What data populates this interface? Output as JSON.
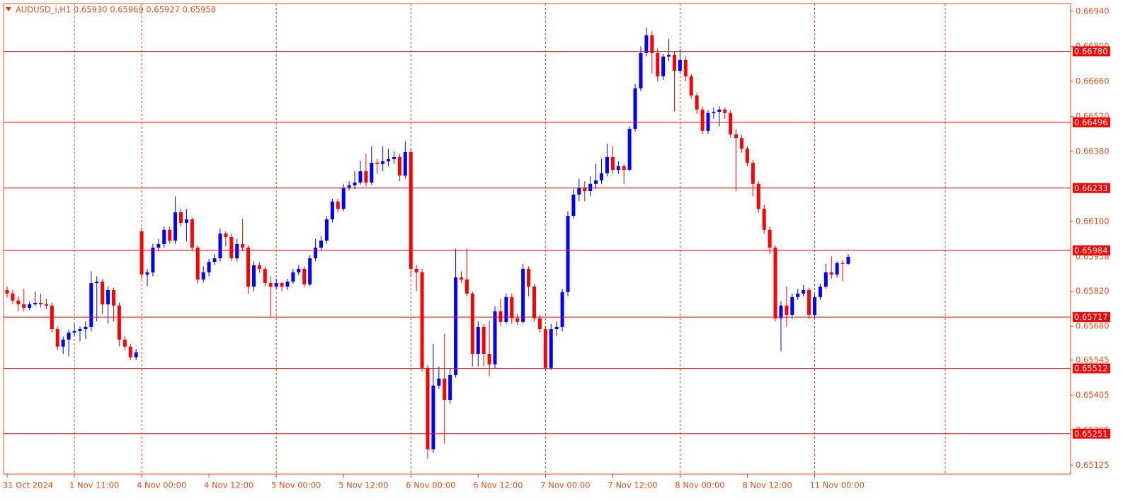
{
  "chart_data": {
    "type": "candlestick",
    "title": "AUDUSD_i,H1",
    "info": "0.65930 0.65969 0.65927 0.65958",
    "up_color": "#0000ff",
    "down_color": "#ff0000",
    "level_color": "#ff0000",
    "grid_color": "#ff3a1a",
    "ylim": [
      0.65089,
      0.66971
    ],
    "yticks": [
      {
        "value": 0.6694,
        "label": "0.66940"
      },
      {
        "value": 0.668,
        "label": "0.66800"
      },
      {
        "value": 0.6666,
        "label": "0.66660"
      },
      {
        "value": 0.6652,
        "label": "0.66520"
      },
      {
        "value": 0.6638,
        "label": "0.66380"
      },
      {
        "value": 0.661,
        "label": "0.66100"
      },
      {
        "value": 0.6582,
        "label": "0.65820"
      },
      {
        "value": 0.6568,
        "label": "0.65680"
      },
      0.65545,
      0.65405,
      0.65265,
      0.65125
    ],
    "levels": [
      {
        "value": 0.6678,
        "label": "0.66780"
      },
      0.66496,
      0.66233,
      0.65984,
      0.65717,
      0.65512,
      0.65251
    ],
    "categories": [
      "31 Oct 2024",
      null,
      null,
      null,
      null,
      null,
      null,
      null,
      null,
      null,
      null,
      null,
      "1 Nov 11:00",
      null,
      null,
      null,
      null,
      null,
      null,
      null,
      null,
      null,
      null,
      null,
      "4 Nov 00:00",
      null,
      null,
      null,
      null,
      null,
      null,
      null,
      null,
      null,
      null,
      null,
      "4 Nov 12:00",
      null,
      null,
      null,
      null,
      null,
      null,
      null,
      null,
      null,
      null,
      null,
      "5 Nov 00:00",
      null,
      null,
      null,
      null,
      null,
      null,
      null,
      null,
      null,
      null,
      null,
      "5 Nov 12:00",
      null,
      null,
      null,
      null,
      null,
      null,
      null,
      null,
      null,
      null,
      null,
      "6 Nov 00:00",
      null,
      null,
      null,
      null,
      null,
      null,
      null,
      null,
      null,
      null,
      null,
      "6 Nov 12:00",
      null,
      null,
      null,
      null,
      null,
      null,
      null,
      null,
      null,
      null,
      null,
      "7 Nov 00:00",
      null,
      null,
      null,
      null,
      null,
      null,
      null,
      null,
      null,
      null,
      null,
      "7 Nov 12:00",
      null,
      null,
      null,
      null,
      null,
      null,
      null,
      null,
      null,
      null,
      null,
      "8 Nov 00:00",
      null,
      null,
      null,
      null,
      null,
      null,
      null,
      null,
      null,
      null,
      null,
      "8 Nov 12:00",
      null,
      null,
      null,
      null,
      null,
      null,
      null,
      null,
      null,
      null,
      null,
      "11 Nov 00:00",
      null,
      null,
      null,
      null,
      null,
      null
    ],
    "open": [
      0.65825,
      0.65811,
      0.65783,
      0.65768,
      0.65754,
      0.65768,
      0.65774,
      0.65768,
      0.65763,
      0.65669,
      0.65599,
      0.65627,
      0.65655,
      0.65661,
      0.65669,
      0.65678,
      0.65853,
      0.65859,
      0.65768,
      0.65825,
      0.65763,
      0.65627,
      0.65599,
      0.65556,
      0.6606,
      0.65887,
      0.65896,
      0.65995,
      0.66009,
      0.66066,
      0.66023,
      0.66136,
      0.66094,
      0.66108,
      0.65995,
      0.65867,
      0.65896,
      0.65938,
      0.65952,
      0.66051,
      0.66037,
      0.65952,
      0.66009,
      0.65995,
      0.65839,
      0.65924,
      0.6591,
      0.65853,
      0.65839,
      0.65853,
      0.65839,
      0.65859,
      0.65896,
      0.6591,
      0.65848,
      0.65952,
      0.65995,
      0.66023,
      0.66108,
      0.66179,
      0.6615,
      0.66235,
      0.66244,
      0.66255,
      0.663,
      0.66255,
      0.66334,
      0.66329,
      0.6634,
      0.66349,
      0.66357,
      0.66283,
      0.66377,
      0.6591,
      0.65896,
      0.65514,
      0.65188,
      0.65443,
      0.65471,
      0.65386,
      0.65485,
      0.65876,
      0.65867,
      0.65811,
      0.6557,
      0.65678,
      0.6557,
      0.65528,
      0.6574,
      0.65698,
      0.65797,
      0.65712,
      0.65698,
      0.6591,
      0.65839,
      0.65712,
      0.65669,
      0.65514,
      0.65669,
      0.65678,
      0.65817,
      0.66122,
      0.66207,
      0.66235,
      0.66221,
      0.6625,
      0.66264,
      0.66292,
      0.66357,
      0.66306,
      0.6632,
      0.66306,
      0.6647,
      0.66632,
      0.66773,
      0.66844,
      0.66773,
      0.6668,
      0.66759,
      0.66765,
      0.66702,
      0.66745,
      0.6668,
      0.66603,
      0.66547,
      0.66462,
      0.66533,
      0.66538,
      0.66547,
      0.66533,
      0.66448,
      0.66433,
      0.66391,
      0.66334,
      0.6625,
      0.6615,
      0.66066,
      0.65995,
      0.65712,
      0.65763,
      0.65726,
      0.65797,
      0.65811,
      0.65825,
      0.65726,
      0.65797,
      0.65839,
      0.65896,
      0.65887,
      0.65933,
      0.6593
    ],
    "high": [
      0.6584,
      0.65825,
      0.658,
      0.6583,
      0.6578,
      0.6582,
      0.6581,
      0.6579,
      0.65775,
      0.6568,
      0.6564,
      0.65668,
      0.6569,
      0.6568,
      0.657,
      0.659,
      0.6588,
      0.6587,
      0.6584,
      0.65835,
      0.65775,
      0.6564,
      0.6561,
      0.6559,
      0.66075,
      0.6591,
      0.6601,
      0.6603,
      0.6608,
      0.6608,
      0.662,
      0.6615,
      0.6615,
      0.66115,
      0.66005,
      0.6592,
      0.6595,
      0.6597,
      0.6607,
      0.6606,
      0.6605,
      0.6603,
      0.6611,
      0.66005,
      0.6594,
      0.65935,
      0.6592,
      0.6588,
      0.6587,
      0.6586,
      0.6587,
      0.6591,
      0.65925,
      0.6592,
      0.65965,
      0.6603,
      0.6604,
      0.6612,
      0.6619,
      0.6619,
      0.6625,
      0.6626,
      0.663,
      0.6634,
      0.6637,
      0.664,
      0.6635,
      0.664,
      0.6639,
      0.6638,
      0.6637,
      0.6642,
      0.6639,
      0.65925,
      0.6591,
      0.65525,
      0.6561,
      0.6552,
      0.6565,
      0.6551,
      0.6599,
      0.659,
      0.6599,
      0.6582,
      0.657,
      0.6569,
      0.657,
      0.6576,
      0.6579,
      0.6581,
      0.6581,
      0.6573,
      0.6593,
      0.6592,
      0.6585,
      0.65725,
      0.6568,
      0.6569,
      0.657,
      0.6583,
      0.6614,
      0.6623,
      0.6627,
      0.6626,
      0.6628,
      0.6633,
      0.6635,
      0.6641,
      0.664,
      0.6634,
      0.6633,
      0.6648,
      0.6665,
      0.668,
      0.66875,
      0.6686,
      0.6679,
      0.6677,
      0.6683,
      0.6678,
      0.6679,
      0.6676,
      0.6669,
      0.66615,
      0.6656,
      0.66545,
      0.66555,
      0.6656,
      0.66555,
      0.66545,
      0.6647,
      0.66445,
      0.664,
      0.66345,
      0.6626,
      0.66165,
      0.6608,
      0.66005,
      0.6578,
      0.6584,
      0.6581,
      0.6583,
      0.65845,
      0.65835,
      0.6581,
      0.6585,
      0.6593,
      0.6596,
      0.6594,
      0.65945,
      0.65969
    ],
    "low": [
      0.65795,
      0.6577,
      0.6574,
      0.6574,
      0.65745,
      0.6576,
      0.65755,
      0.6575,
      0.65655,
      0.65585,
      0.6557,
      0.6556,
      0.6564,
      0.6562,
      0.6563,
      0.6566,
      0.657,
      0.6573,
      0.6569,
      0.657,
      0.656,
      0.65585,
      0.65545,
      0.65545,
      0.6587,
      0.6584,
      0.6588,
      0.6598,
      0.65995,
      0.6601,
      0.6601,
      0.6608,
      0.6602,
      0.6598,
      0.6585,
      0.65855,
      0.6588,
      0.65925,
      0.6594,
      0.66,
      0.6594,
      0.6594,
      0.6598,
      0.6581,
      0.6582,
      0.65895,
      0.6584,
      0.6572,
      0.6583,
      0.6582,
      0.65825,
      0.6585,
      0.65885,
      0.65835,
      0.6584,
      0.6594,
      0.65985,
      0.6601,
      0.66095,
      0.66135,
      0.6614,
      0.66225,
      0.6623,
      0.66245,
      0.6624,
      0.66245,
      0.6629,
      0.663,
      0.6632,
      0.6633,
      0.6626,
      0.6627,
      0.6588,
      0.6582,
      0.655,
      0.6515,
      0.65175,
      0.6543,
      0.6521,
      0.6537,
      0.65475,
      0.65855,
      0.658,
      0.6552,
      0.6552,
      0.6552,
      0.6548,
      0.6551,
      0.6568,
      0.6569,
      0.6569,
      0.65685,
      0.6569,
      0.658,
      0.657,
      0.65655,
      0.655,
      0.65505,
      0.6564,
      0.6566,
      0.658,
      0.6611,
      0.6618,
      0.6618,
      0.662,
      0.6623,
      0.6625,
      0.6628,
      0.6629,
      0.6629,
      0.6625,
      0.663,
      0.6646,
      0.6662,
      0.6676,
      0.6669,
      0.6666,
      0.66665,
      0.6674,
      0.6654,
      0.6669,
      0.6666,
      0.6659,
      0.6653,
      0.6645,
      0.6645,
      0.6651,
      0.6648,
      0.6651,
      0.66435,
      0.6622,
      0.66375,
      0.6632,
      0.662,
      0.66135,
      0.6605,
      0.6597,
      0.657,
      0.6558,
      0.6568,
      0.6571,
      0.65785,
      0.658,
      0.6571,
      0.6571,
      0.65785,
      0.6583,
      0.6587,
      0.65875,
      0.6586,
      0.65927
    ],
    "close": [
      0.65811,
      0.65783,
      0.65768,
      0.65754,
      0.65768,
      0.65774,
      0.65768,
      0.65763,
      0.65669,
      0.65599,
      0.65627,
      0.65655,
      0.65661,
      0.65669,
      0.65678,
      0.65853,
      0.65859,
      0.65768,
      0.65825,
      0.65763,
      0.65627,
      0.65599,
      0.65556,
      0.65576,
      0.65887,
      0.65896,
      0.65995,
      0.66009,
      0.66066,
      0.66023,
      0.66136,
      0.66094,
      0.66108,
      0.65995,
      0.65867,
      0.65896,
      0.65938,
      0.65952,
      0.66051,
      0.66037,
      0.65952,
      0.66009,
      0.65995,
      0.65839,
      0.65924,
      0.6591,
      0.65853,
      0.65839,
      0.65853,
      0.65839,
      0.65859,
      0.65896,
      0.6591,
      0.65848,
      0.65952,
      0.65995,
      0.66023,
      0.66108,
      0.66179,
      0.6615,
      0.66235,
      0.66244,
      0.66255,
      0.663,
      0.66255,
      0.66334,
      0.66329,
      0.6634,
      0.66349,
      0.66357,
      0.66283,
      0.66377,
      0.6591,
      0.65896,
      0.65514,
      0.65188,
      0.65443,
      0.65471,
      0.65386,
      0.65485,
      0.65876,
      0.65867,
      0.65811,
      0.6557,
      0.65678,
      0.6557,
      0.65528,
      0.6574,
      0.65698,
      0.65797,
      0.65712,
      0.65698,
      0.6591,
      0.65839,
      0.65712,
      0.65669,
      0.65514,
      0.65669,
      0.65678,
      0.65817,
      0.66122,
      0.66207,
      0.66235,
      0.66221,
      0.6625,
      0.66264,
      0.66292,
      0.66357,
      0.66306,
      0.6632,
      0.66306,
      0.6647,
      0.66632,
      0.66773,
      0.66844,
      0.66773,
      0.6668,
      0.66759,
      0.66765,
      0.66702,
      0.66745,
      0.6668,
      0.66603,
      0.66547,
      0.66462,
      0.66533,
      0.66538,
      0.66547,
      0.66533,
      0.66448,
      0.66433,
      0.66391,
      0.66334,
      0.6625,
      0.6615,
      0.66066,
      0.65995,
      0.65712,
      0.65763,
      0.65726,
      0.65797,
      0.65811,
      0.65825,
      0.65726,
      0.65797,
      0.65839,
      0.65896,
      0.65887,
      0.65933,
      0.6593,
      0.65958
    ]
  }
}
